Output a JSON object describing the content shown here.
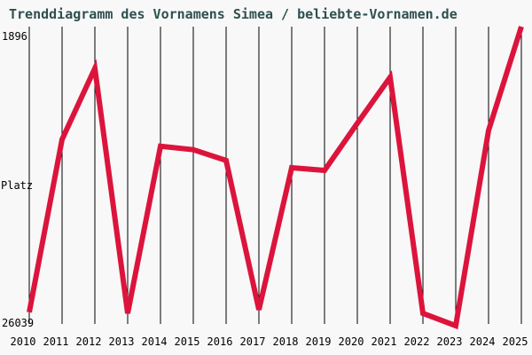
{
  "page": {
    "background_color": "#f8f8f8"
  },
  "header": {
    "title": "Trenddiagramm des Vornamens Simea / beliebte-Vornamen.de",
    "title_color": "#2f4f4f"
  },
  "axis": {
    "y_top_label": "1896",
    "y_mid_label": "Platz",
    "y_bottom_label": "26039"
  },
  "chart_data": {
    "type": "line",
    "title": "Trenddiagramm des Vornamens Simea / beliebte-Vornamen.de",
    "xlabel": "",
    "ylabel": "Platz",
    "categories": [
      "2010",
      "2011",
      "2012",
      "2013",
      "2014",
      "2015",
      "2016",
      "2017",
      "2018",
      "2019",
      "2020",
      "2021",
      "2022",
      "2023",
      "2024",
      "2025"
    ],
    "values": [
      24950,
      11000,
      5260,
      25040,
      11550,
      11830,
      12700,
      24750,
      13290,
      13500,
      9700,
      5980,
      25040,
      26039,
      10280,
      1896
    ],
    "series_name": "Platz (Rang des Vornamens Simea)",
    "ylim": [
      1896,
      26039
    ],
    "y_axis_inverted": true,
    "grid": "vertical-only",
    "legend": "none",
    "line_color": "#dc143c",
    "gridline_color": "#000000",
    "tick_label_color": "#000000"
  }
}
